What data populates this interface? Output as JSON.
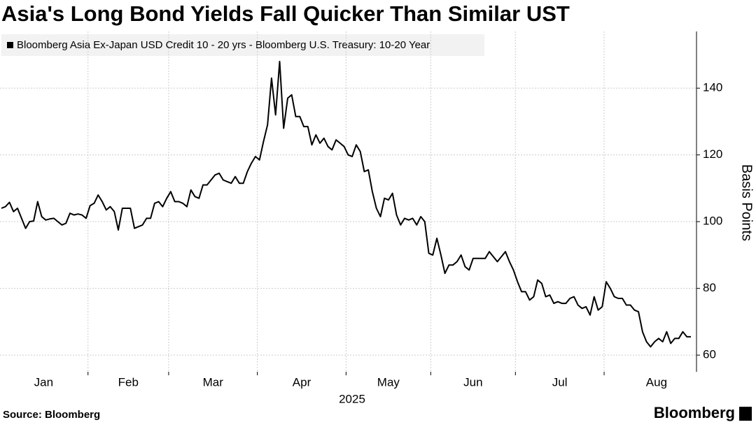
{
  "chart_data": {
    "type": "line",
    "title": "Asia's Long Bond Yields Fall Quicker Than Similar UST",
    "xlabel": "2025",
    "ylabel": "Basis Points",
    "source": "Source: Bloomberg",
    "brand": "Bloomberg",
    "categories": [
      "Jan",
      null,
      null,
      null,
      null,
      null,
      null,
      null,
      null,
      null,
      null,
      null,
      null,
      null,
      null,
      null,
      null,
      null,
      null,
      null,
      null,
      null,
      "Feb",
      null,
      null,
      null,
      null,
      null,
      null,
      null,
      null,
      null,
      null,
      null,
      null,
      null,
      null,
      null,
      null,
      null,
      null,
      null,
      "Mar",
      null,
      null,
      null,
      null,
      null,
      null,
      null,
      null,
      null,
      null,
      null,
      null,
      null,
      null,
      null,
      null,
      null,
      null,
      null,
      null,
      null,
      "Apr",
      null,
      null,
      null,
      null,
      null,
      null,
      null,
      null,
      null,
      null,
      null,
      null,
      null,
      null,
      null,
      null,
      null,
      null,
      null,
      null,
      null,
      "May",
      null,
      null,
      null,
      null,
      null,
      null,
      null,
      null,
      null,
      null,
      null,
      null,
      null,
      null,
      null,
      null,
      null,
      null,
      null,
      null,
      "Jun",
      null,
      null,
      null,
      null,
      null,
      null,
      null,
      null,
      null,
      null,
      null,
      null,
      null,
      null,
      null,
      null,
      null,
      null,
      null,
      null,
      "Jul",
      null,
      null,
      null,
      null,
      null,
      null,
      null,
      null,
      null,
      null,
      null,
      null,
      null,
      null,
      null,
      null,
      null,
      null,
      null,
      null,
      null,
      "Aug",
      null,
      null,
      null,
      null,
      null,
      null,
      null,
      null,
      null,
      null,
      null,
      null,
      null,
      null,
      null,
      null,
      null,
      null,
      null,
      null,
      null
    ],
    "series": [
      {
        "name": "Bloomberg Asia Ex-Japan USD Credit 10 - 20 yrs - Bloomberg U.S. Treasury: 10-20 Year",
        "color": "#000000",
        "values": [
          104,
          104.5,
          105.8,
          103,
          104,
          101,
          98,
          100,
          100.2,
          106,
          101.5,
          100.5,
          100.8,
          101,
          100,
          99,
          99.5,
          102.5,
          102,
          102.3,
          102,
          101,
          104.8,
          105.5,
          108,
          106,
          103.5,
          104.5,
          103,
          97.5,
          104,
          104,
          104,
          98,
          98.5,
          99,
          101,
          101,
          105.5,
          106,
          104.5,
          107,
          109,
          106,
          106,
          105.5,
          104.5,
          109.5,
          107.5,
          107,
          111,
          111,
          112.5,
          114,
          114.5,
          112.5,
          112,
          111.5,
          113.5,
          111.5,
          111.5,
          115,
          117.5,
          119.5,
          118.5,
          124,
          129,
          143,
          132,
          148,
          128,
          137,
          138,
          131.5,
          131.5,
          128.5,
          128.5,
          123,
          126,
          123.5,
          125,
          122.5,
          121.5,
          124.5,
          123.5,
          122.5,
          120,
          119.5,
          123,
          121,
          115,
          115.5,
          109,
          104,
          101.5,
          107,
          106.5,
          108.5,
          102,
          99,
          101,
          100.5,
          101,
          99,
          101.5,
          100,
          90.5,
          90,
          95,
          90,
          84.5,
          87,
          87,
          88,
          90,
          86.5,
          85.5,
          89,
          89,
          89,
          89,
          91,
          89.5,
          88,
          89.5,
          91,
          88,
          85.5,
          82,
          79,
          79,
          76.5,
          77.5,
          82.5,
          81.5,
          77.5,
          78,
          75.5,
          76,
          75.5,
          75.5,
          77,
          77.5,
          75,
          74,
          74.5,
          72,
          77.5,
          73.5,
          74.5,
          82,
          80,
          77.5,
          77,
          77,
          75,
          75,
          73.5,
          73,
          67,
          64,
          62.5,
          64,
          65,
          64,
          67,
          63.5,
          65,
          65,
          67,
          65.5,
          65.5
        ]
      }
    ],
    "ylim": [
      55,
      157
    ],
    "yticks": [
      60,
      80,
      100,
      120,
      140
    ],
    "grid": true
  }
}
